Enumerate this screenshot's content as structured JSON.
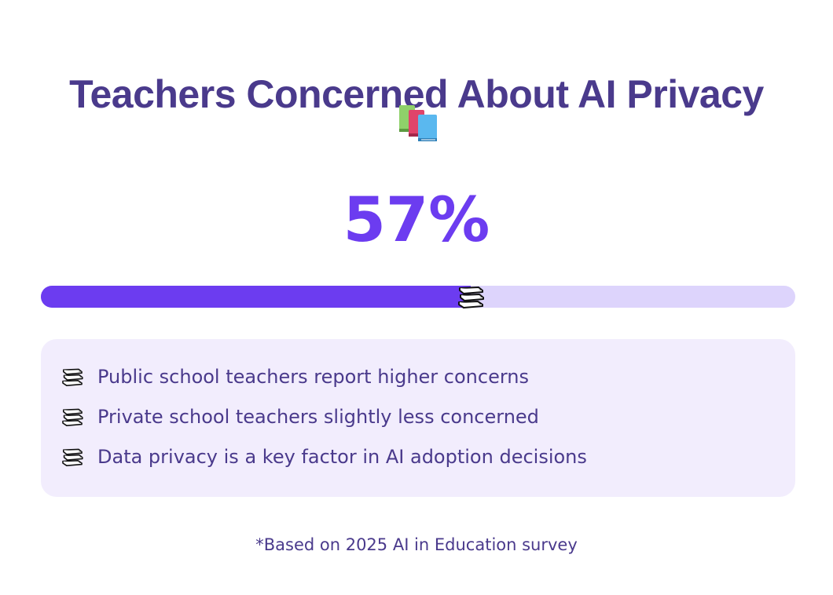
{
  "title": "Teachers Concerned About AI Privacy",
  "title_icon": "books-icon",
  "stat": {
    "value": 57,
    "label": "57%"
  },
  "progress": {
    "fraction": 0.57,
    "marker_icon": "books-stack-icon"
  },
  "highlights": [
    {
      "icon": "books-stack-icon",
      "text": "Public school teachers report higher concerns"
    },
    {
      "icon": "books-stack-icon",
      "text": "Private school teachers slightly less concerned"
    },
    {
      "icon": "books-stack-icon",
      "text": "Data privacy is a key factor in AI adoption decisions"
    }
  ],
  "footnote": "*Based on 2025 AI in Education survey",
  "colors": {
    "title": "#4a3a8c",
    "accent": "#6c3cf0",
    "track": "#ddd4fc",
    "panel": "#f2edfd"
  }
}
